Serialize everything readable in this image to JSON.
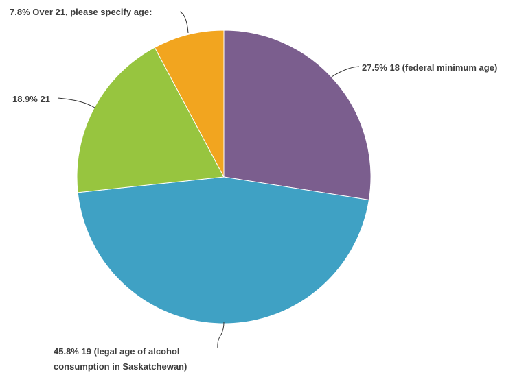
{
  "chart_data": {
    "type": "pie",
    "slices": [
      {
        "label": "18 (federal minimum age)",
        "percent": "27.5%",
        "value": 27.5,
        "color": "#7b5e8e"
      },
      {
        "label": "19 (legal age of alcohol consumption in Saskatchewan)",
        "percent": "45.8%",
        "value": 45.8,
        "color": "#3fa1c4"
      },
      {
        "label": "21",
        "percent": "18.9%",
        "value": 18.9,
        "color": "#97c53f"
      },
      {
        "label": "Over 21, please specify age:",
        "percent": "7.8%",
        "value": 7.8,
        "color": "#f2a51f"
      }
    ]
  }
}
